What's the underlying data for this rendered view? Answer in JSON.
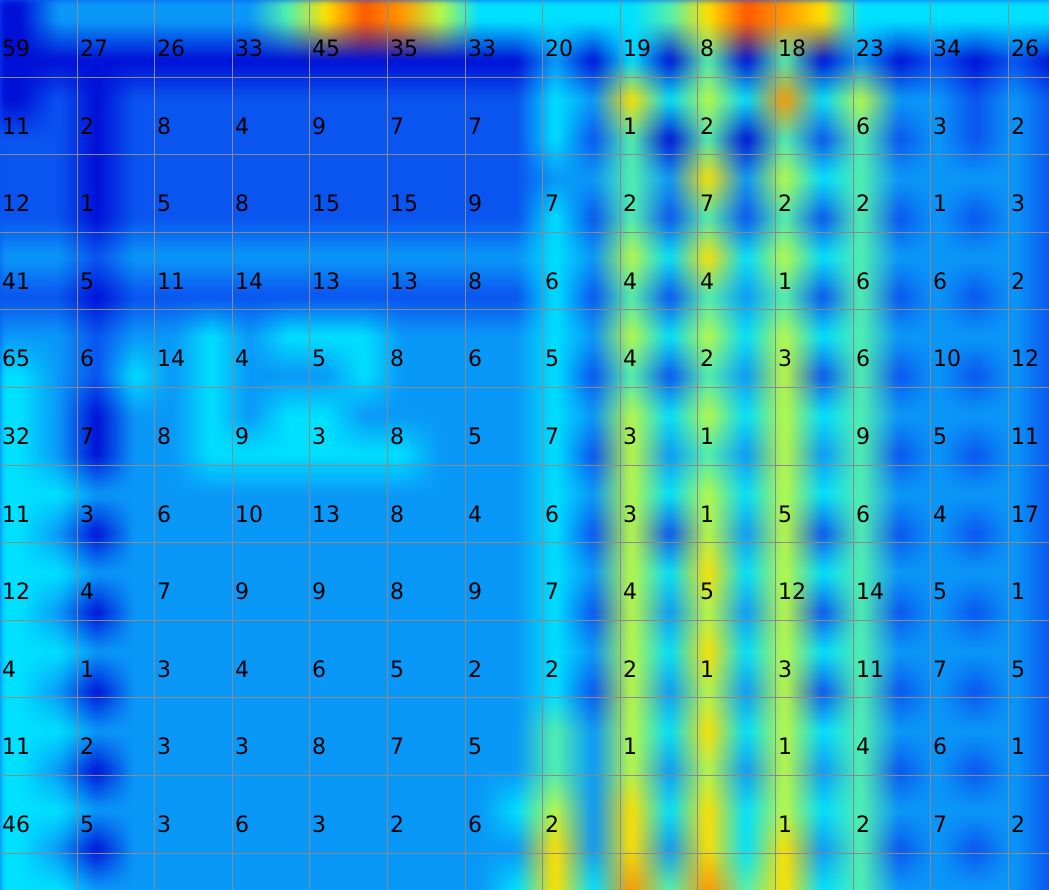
{
  "chart_data": {
    "type": "heatmap",
    "grid": true,
    "colormap": "jet",
    "colors": {
      "grid_line": "#8a8a8a",
      "label": "#000000"
    },
    "row_values": [
      [
        59,
        27,
        26,
        33,
        45,
        35,
        33,
        20,
        19,
        8,
        18,
        23,
        34,
        26
      ],
      [
        11,
        2,
        8,
        4,
        9,
        7,
        7,
        null,
        1,
        2,
        null,
        6,
        3,
        2
      ],
      [
        12,
        1,
        5,
        8,
        15,
        15,
        9,
        7,
        2,
        7,
        2,
        2,
        1,
        3
      ],
      [
        41,
        5,
        11,
        14,
        13,
        13,
        8,
        6,
        4,
        4,
        1,
        6,
        6,
        2
      ],
      [
        65,
        6,
        14,
        4,
        5,
        8,
        6,
        5,
        4,
        2,
        3,
        6,
        10,
        12
      ],
      [
        32,
        7,
        8,
        9,
        3,
        8,
        5,
        7,
        3,
        1,
        null,
        9,
        5,
        11
      ],
      [
        11,
        3,
        6,
        10,
        13,
        8,
        4,
        6,
        3,
        1,
        5,
        6,
        4,
        17
      ],
      [
        12,
        4,
        7,
        9,
        9,
        8,
        9,
        7,
        4,
        5,
        12,
        14,
        5,
        1
      ],
      [
        4,
        1,
        3,
        4,
        6,
        5,
        2,
        2,
        2,
        1,
        3,
        11,
        7,
        5
      ],
      [
        11,
        2,
        3,
        3,
        8,
        7,
        5,
        null,
        1,
        null,
        1,
        4,
        6,
        1
      ],
      [
        46,
        5,
        3,
        6,
        3,
        2,
        6,
        2,
        null,
        null,
        1,
        2,
        7,
        2
      ]
    ],
    "background_rows": [
      [
        1,
        3,
        3,
        3,
        3,
        3,
        3,
        5,
        7,
        9,
        8,
        6,
        4,
        4,
        4,
        4,
        4,
        5,
        7,
        9,
        8,
        7,
        4,
        4,
        4,
        4,
        4,
        4
      ],
      [
        1,
        1,
        1,
        1,
        1,
        1,
        1,
        1,
        1,
        1,
        1,
        1,
        1,
        1,
        3,
        1,
        4,
        1,
        5,
        1,
        5,
        1,
        3,
        1,
        2,
        1,
        2,
        1
      ],
      [
        1,
        2,
        1,
        2,
        2,
        2,
        2,
        2,
        2,
        2,
        2,
        2,
        2,
        2,
        4,
        3,
        7,
        4,
        6,
        4,
        8,
        4,
        6,
        3,
        3,
        2,
        3,
        2
      ],
      [
        2,
        2,
        1,
        2,
        2,
        2,
        2,
        2,
        2,
        2,
        2,
        2,
        2,
        2,
        4,
        2,
        5,
        1,
        5,
        1,
        5,
        2,
        5,
        2,
        3,
        2,
        3,
        2
      ],
      [
        2,
        2,
        1,
        2,
        2,
        2,
        2,
        2,
        2,
        2,
        2,
        2,
        2,
        2,
        3,
        3,
        5,
        3,
        7,
        3,
        6,
        4,
        5,
        3,
        3,
        3,
        3,
        2
      ],
      [
        2,
        2,
        1,
        2,
        2,
        2,
        2,
        2,
        2,
        2,
        2,
        2,
        2,
        2,
        4,
        2,
        5,
        2,
        5,
        2,
        5,
        2,
        5,
        2,
        3,
        2,
        3,
        2
      ],
      [
        3,
        3,
        2,
        3,
        3,
        3,
        3,
        3,
        3,
        3,
        3,
        3,
        3,
        3,
        4,
        3,
        6,
        4,
        7,
        4,
        6,
        4,
        5,
        3,
        3,
        3,
        3,
        2
      ],
      [
        2,
        2,
        1,
        2,
        2,
        2,
        2,
        2,
        2,
        2,
        2,
        2,
        2,
        2,
        4,
        2,
        5,
        2,
        5,
        3,
        5,
        2,
        5,
        2,
        3,
        2,
        3,
        2
      ],
      [
        3,
        3,
        2,
        3,
        3,
        4,
        3,
        4,
        4,
        4,
        3,
        3,
        3,
        3,
        4,
        3,
        6,
        4,
        6,
        4,
        6,
        4,
        5,
        3,
        3,
        3,
        3,
        2
      ],
      [
        4,
        3,
        2,
        4,
        3,
        4,
        3,
        3,
        3,
        4,
        3,
        3,
        3,
        3,
        4,
        2,
        5,
        2,
        5,
        3,
        6,
        2,
        5,
        2,
        3,
        2,
        3,
        2
      ],
      [
        4,
        3,
        1,
        3,
        3,
        4,
        3,
        4,
        4,
        3,
        3,
        3,
        3,
        3,
        4,
        3,
        6,
        4,
        6,
        4,
        6,
        4,
        5,
        3,
        3,
        3,
        3,
        2
      ],
      [
        4,
        3,
        1,
        3,
        3,
        4,
        4,
        4,
        4,
        4,
        4,
        3,
        3,
        3,
        4,
        2,
        6,
        3,
        5,
        3,
        6,
        3,
        5,
        2,
        3,
        2,
        3,
        2
      ],
      [
        4,
        4,
        3,
        3,
        3,
        3,
        3,
        3,
        3,
        3,
        3,
        3,
        3,
        3,
        4,
        3,
        6,
        4,
        6,
        4,
        6,
        4,
        5,
        3,
        3,
        3,
        3,
        2
      ],
      [
        4,
        3,
        1,
        3,
        3,
        3,
        3,
        3,
        3,
        3,
        3,
        3,
        3,
        3,
        4,
        2,
        6,
        2,
        6,
        3,
        6,
        2,
        5,
        2,
        3,
        2,
        3,
        2
      ],
      [
        4,
        4,
        3,
        3,
        3,
        3,
        3,
        3,
        3,
        3,
        3,
        3,
        3,
        3,
        4,
        3,
        6,
        4,
        7,
        4,
        6,
        4,
        5,
        3,
        3,
        3,
        3,
        2
      ],
      [
        4,
        3,
        1,
        3,
        3,
        3,
        3,
        3,
        3,
        3,
        3,
        3,
        3,
        3,
        4,
        2,
        6,
        3,
        6,
        3,
        6,
        2,
        5,
        2,
        3,
        2,
        3,
        2
      ],
      [
        4,
        4,
        3,
        3,
        3,
        3,
        3,
        3,
        3,
        3,
        3,
        3,
        3,
        3,
        4,
        3,
        6,
        4,
        7,
        4,
        6,
        4,
        5,
        3,
        3,
        3,
        3,
        2
      ],
      [
        4,
        3,
        1,
        3,
        3,
        3,
        3,
        3,
        3,
        3,
        3,
        3,
        3,
        3,
        4,
        2,
        6,
        3,
        6,
        3,
        6,
        2,
        5,
        2,
        3,
        2,
        3,
        2
      ],
      [
        4,
        4,
        3,
        3,
        3,
        3,
        3,
        3,
        3,
        3,
        3,
        3,
        3,
        3,
        5,
        3,
        6,
        4,
        7,
        4,
        6,
        4,
        5,
        3,
        3,
        3,
        3,
        2
      ],
      [
        4,
        3,
        1,
        3,
        3,
        3,
        3,
        3,
        3,
        3,
        3,
        3,
        3,
        3,
        5,
        3,
        6,
        3,
        6,
        3,
        6,
        3,
        5,
        2,
        3,
        2,
        3,
        2
      ],
      [
        4,
        4,
        3,
        3,
        3,
        3,
        3,
        3,
        3,
        3,
        3,
        3,
        3,
        4,
        6,
        3,
        7,
        4,
        7,
        4,
        6,
        4,
        5,
        3,
        3,
        3,
        3,
        2
      ],
      [
        4,
        3,
        1,
        3,
        3,
        3,
        3,
        3,
        3,
        3,
        3,
        3,
        3,
        3,
        7,
        3,
        7,
        3,
        7,
        4,
        7,
        3,
        5,
        2,
        3,
        2,
        3,
        2
      ],
      [
        4,
        4,
        3,
        3,
        3,
        3,
        3,
        3,
        3,
        3,
        3,
        3,
        3,
        4,
        7,
        4,
        8,
        5,
        8,
        5,
        7,
        4,
        5,
        3,
        3,
        3,
        3,
        2
      ]
    ]
  }
}
